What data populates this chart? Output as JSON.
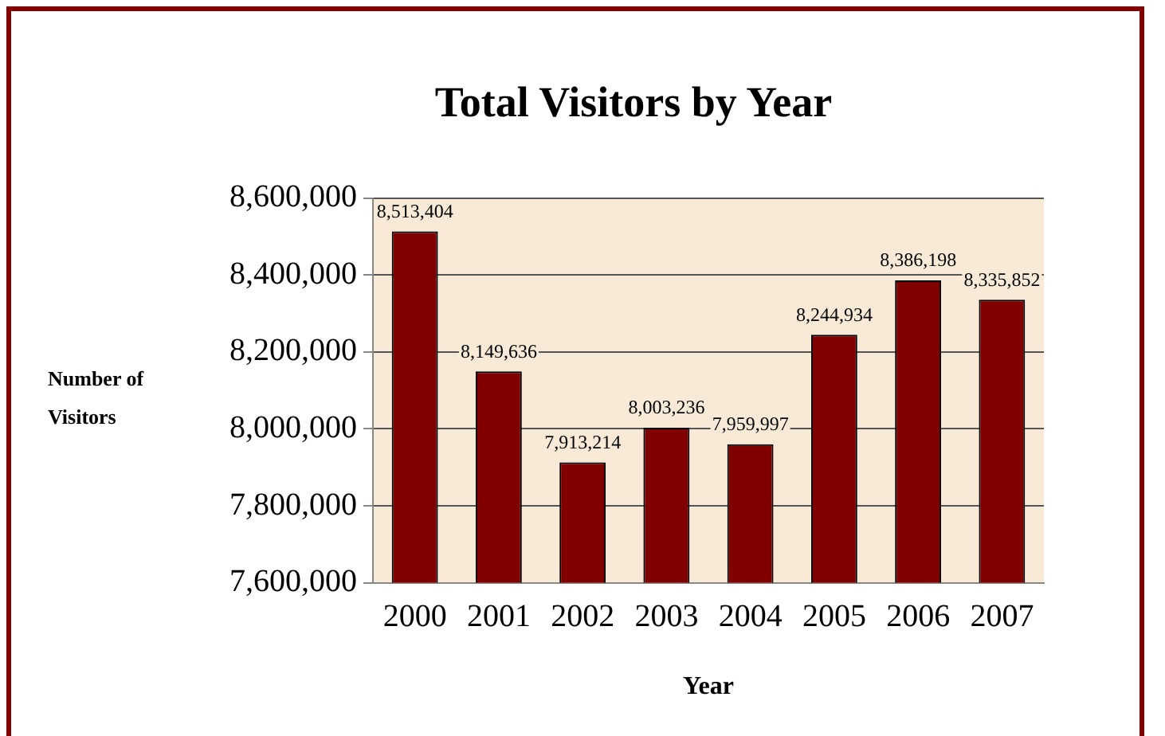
{
  "chart_data": {
    "type": "bar",
    "title": "Total Visitors by Year",
    "xlabel": "Year",
    "ylabel": "Number of Visitors",
    "categories": [
      "2000",
      "2001",
      "2002",
      "2003",
      "2004",
      "2005",
      "2006",
      "2007"
    ],
    "values": [
      8513404,
      8149636,
      7913214,
      8003236,
      7959997,
      8244934,
      8386198,
      8335852
    ],
    "color": "#800000",
    "value_labels": [
      "8,513,404",
      "8,149,636",
      "7,913,214",
      "8,003,236",
      "7,959,997",
      "8,244,934",
      "8,386,198",
      "8,335,852"
    ],
    "ylim": [
      7600000,
      8600000
    ],
    "yticks": [
      {
        "value": 7600000,
        "label": "7,600,000"
      },
      {
        "value": 7800000,
        "label": "7,800,000"
      },
      {
        "value": 8000000,
        "label": "8,000,000"
      },
      {
        "value": 8200000,
        "label": "8,200,000"
      },
      {
        "value": 8400000,
        "label": "8,400,000"
      },
      {
        "value": 8600000,
        "label": "8,600,000"
      }
    ],
    "grid": "y",
    "legend": false
  }
}
